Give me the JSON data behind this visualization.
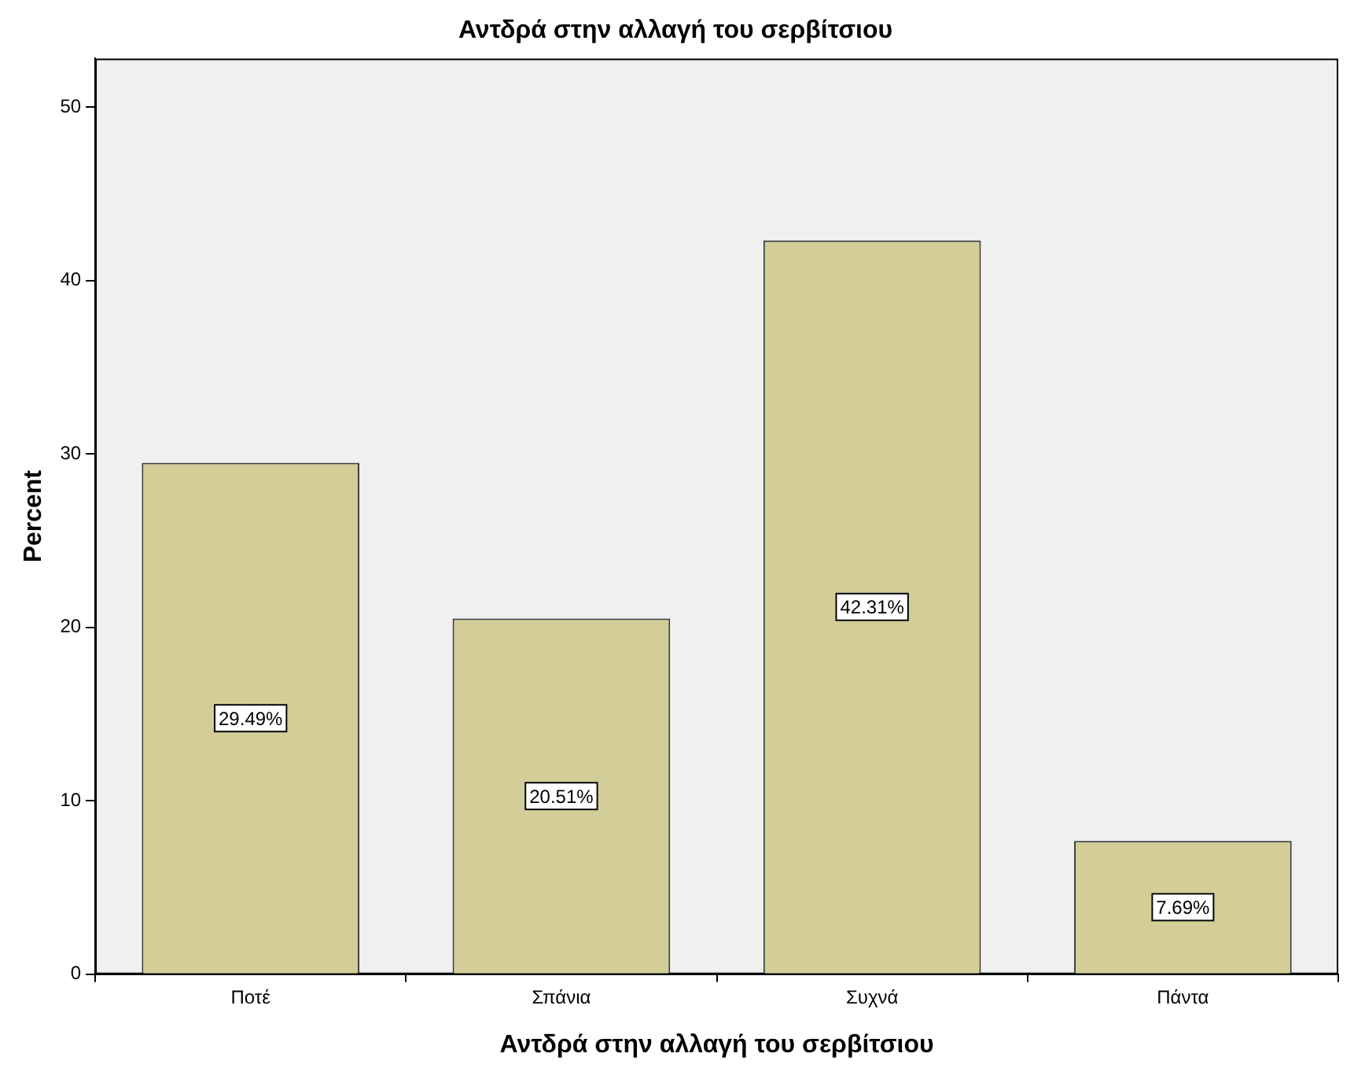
{
  "chart_data": {
    "type": "bar",
    "title": "Αντδρά στην αλλαγή του σερβίτσιου",
    "xlabel": "Αντδρά στην αλλαγή του σερβίτσιου",
    "ylabel": "Percent",
    "categories": [
      "Ποτέ",
      "Σπάνια",
      "Συχνά",
      "Πάντα"
    ],
    "values": [
      29.49,
      20.51,
      42.31,
      7.69
    ],
    "value_labels": [
      "29.49%",
      "20.51%",
      "42.31%",
      "7.69%"
    ],
    "color": "#d3ce97",
    "ylim": [
      0,
      52.8
    ],
    "yticks": [
      0,
      10,
      20,
      30,
      40,
      50
    ],
    "grid": false,
    "legend": false
  }
}
